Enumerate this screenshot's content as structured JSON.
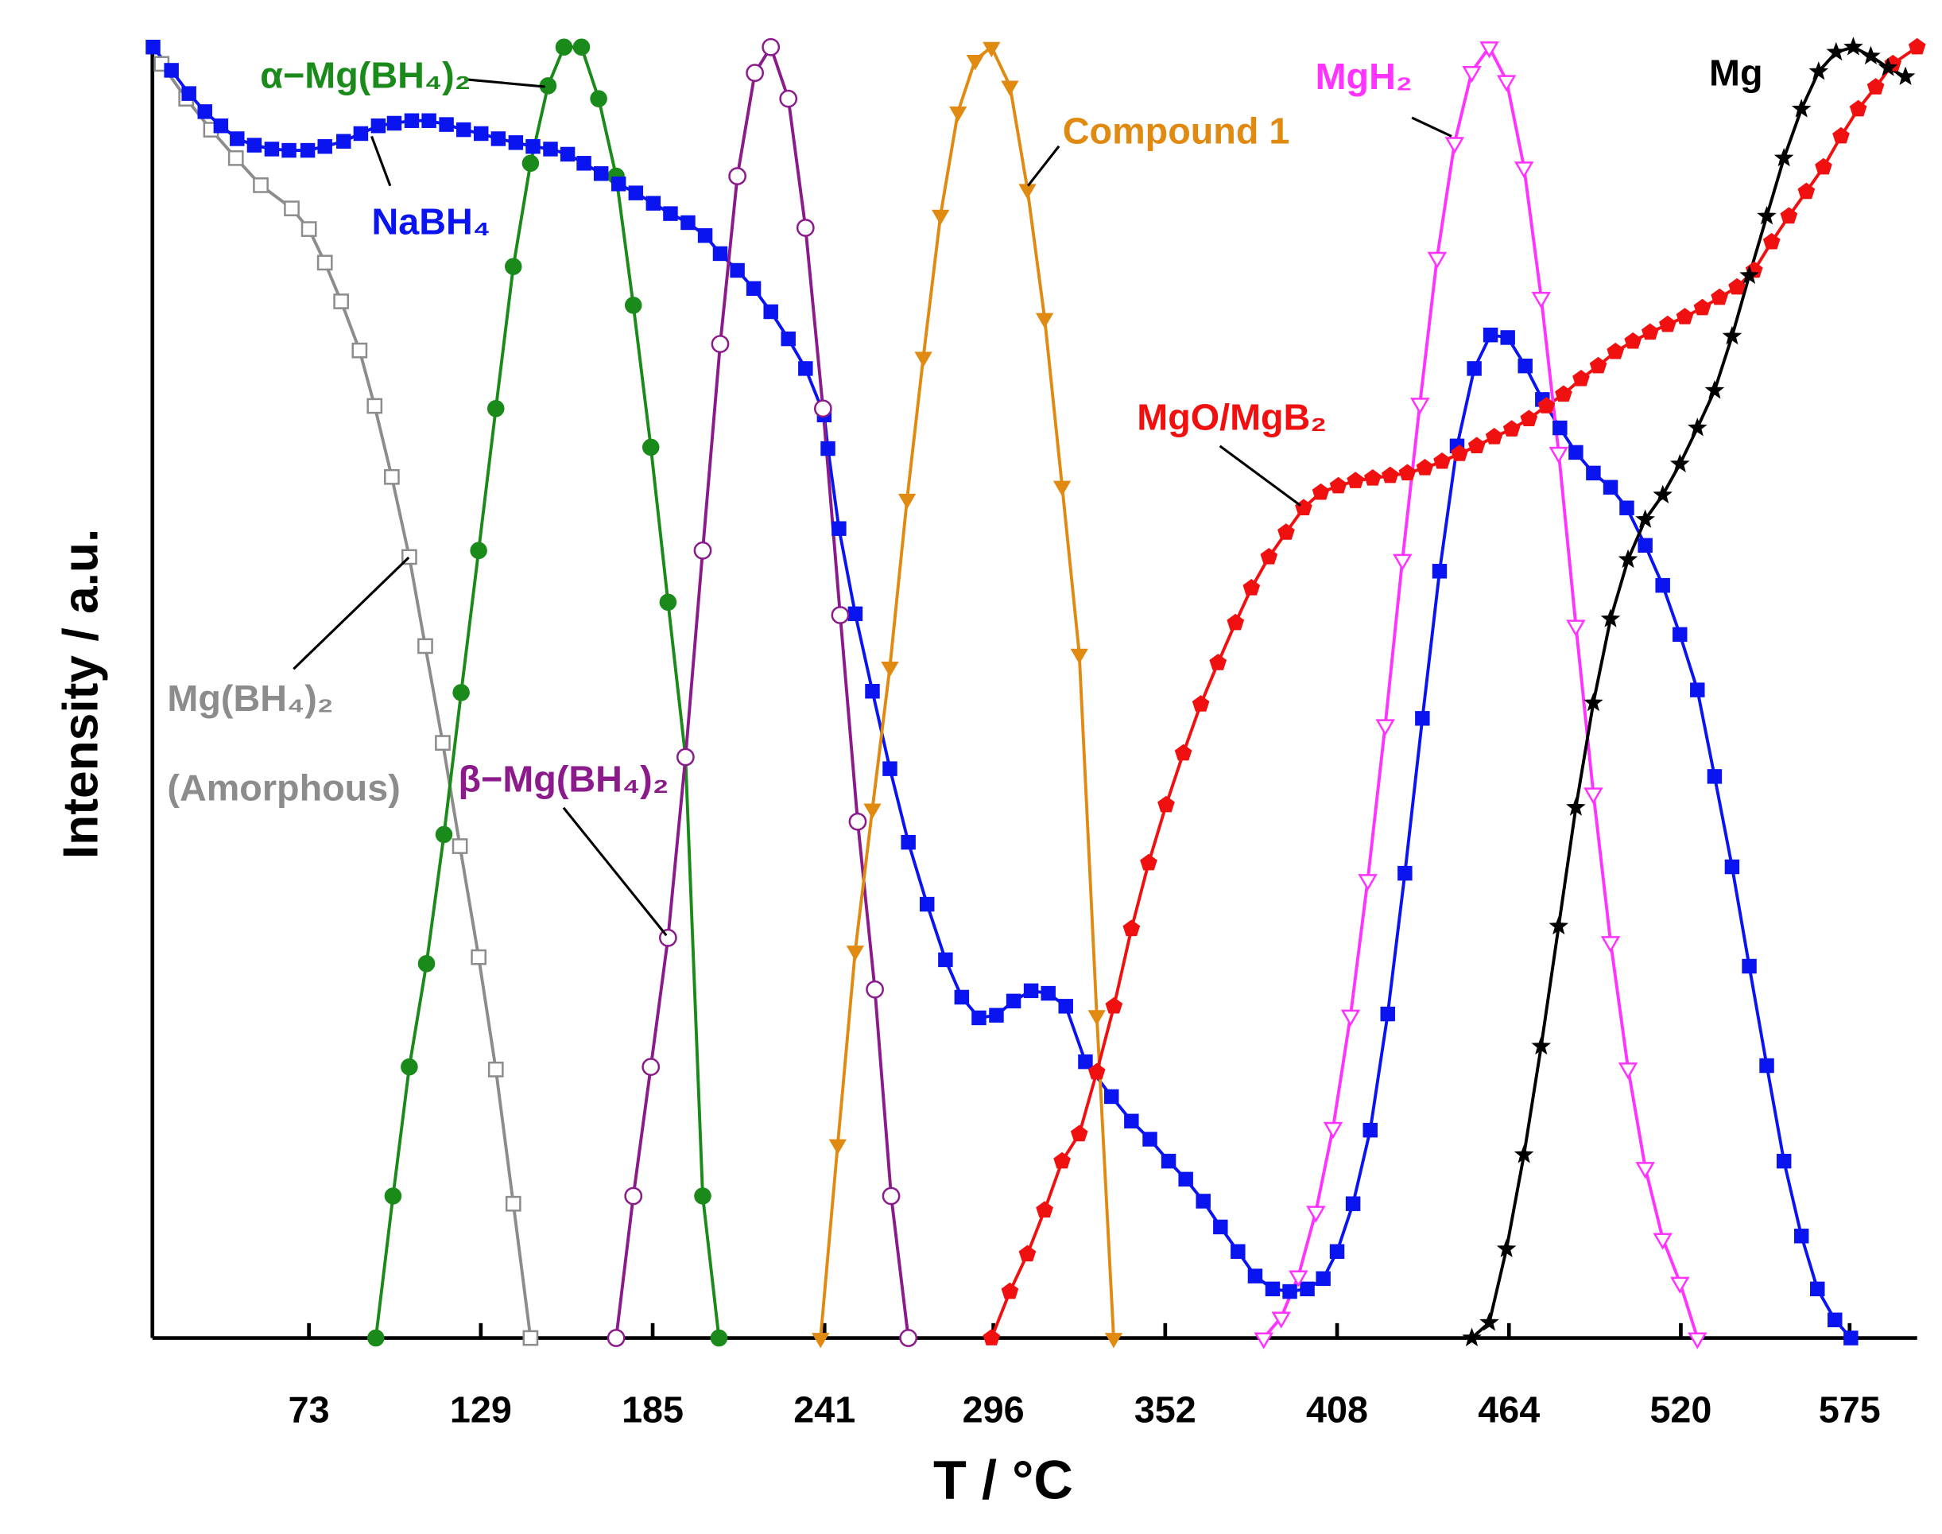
{
  "chart_data": {
    "type": "line",
    "x_label": "T / °C",
    "y_label": "Intensity / a.u.",
    "xlim": [
      22,
      597
    ],
    "ylim": [
      0,
      1
    ],
    "xticks": [
      73,
      129,
      185,
      241,
      296,
      352,
      408,
      464,
      520,
      575
    ],
    "series": [
      {
        "name": "Mg(BH₄)₂ (Amorphous)",
        "color": "#8c8c8c",
        "marker": "square-open",
        "x": [
          25.0,
          33.0,
          41.1,
          49.2,
          57.3,
          67.4,
          73,
          78.2,
          83.5,
          89.5,
          94.4,
          100.0,
          105.7,
          110.9,
          116.6,
          122.2,
          128.3,
          133.9,
          139.6,
          145.2
        ],
        "values": [
          0.987,
          0.96,
          0.936,
          0.914,
          0.893,
          0.875,
          0.859,
          0.833,
          0.803,
          0.765,
          0.722,
          0.667,
          0.605,
          0.536,
          0.461,
          0.381,
          0.295,
          0.208,
          0.104,
          0
        ]
      },
      {
        "name": "α−Mg(BH₄)₂",
        "color": "#1a8a1a",
        "marker": "circle",
        "x": [
          94.8,
          100.4,
          105.7,
          111.3,
          117.0,
          122.6,
          128.3,
          133.9,
          139.6,
          145.2,
          150.9,
          156.1,
          161.8,
          167.4,
          173.1,
          178.7,
          184.4,
          190.0,
          195.7,
          201.3,
          206.6
        ],
        "values": [
          0,
          0.11,
          0.21,
          0.29,
          0.39,
          0.5,
          0.61,
          0.72,
          0.83,
          0.91,
          0.97,
          1.0,
          1.0,
          0.96,
          0.9,
          0.8,
          0.69,
          0.57,
          0.45,
          0.11,
          0
        ]
      },
      {
        "name": "NaBH₄",
        "color": "#0a14f0",
        "marker": "square",
        "x": [
          22.2,
          28.2,
          33.9,
          39.1,
          44.3,
          49.6,
          55.2,
          60.9,
          66.5,
          72.6,
          78.2,
          84.3,
          89.9,
          95.6,
          100.8,
          106.5,
          112.1,
          117.8,
          123.4,
          129.1,
          134.7,
          140.4,
          146.0,
          151.7,
          157.3,
          162.6,
          168.2,
          173.9,
          179.5,
          185.2,
          190.8,
          196.5,
          202.1,
          207.0,
          212.6,
          217.9,
          223.5,
          229.2,
          234.8,
          240.9,
          242.1,
          245.7,
          251.0,
          256.6,
          262.3,
          268.3,
          274.4,
          280.4,
          285.7,
          291.3,
          297.0,
          302.6,
          308.3,
          313.9,
          319.6,
          326.0,
          334.5,
          341.0,
          347.0,
          353.1,
          358.7,
          364.4,
          370.0,
          375.7,
          381.3,
          387.0,
          392.6,
          398.3,
          403.5,
          408.0,
          413.2,
          418.8,
          424.5,
          430.1,
          435.8,
          441.4,
          447.1,
          452.7,
          458.0,
          463.6,
          469.3,
          474.9,
          480.6,
          485.8,
          491.5,
          497.1,
          502.4,
          508.4,
          514.1,
          519.7,
          525.4,
          531.0,
          536.7,
          542.3,
          548.0,
          553.6,
          559.3,
          564.5,
          570.2,
          575.4
        ],
        "values": [
          1.0,
          0.982,
          0.964,
          0.95,
          0.939,
          0.929,
          0.924,
          0.921,
          0.92,
          0.92,
          0.923,
          0.927,
          0.933,
          0.939,
          0.941,
          0.943,
          0.943,
          0.94,
          0.936,
          0.933,
          0.929,
          0.926,
          0.923,
          0.921,
          0.917,
          0.91,
          0.902,
          0.894,
          0.887,
          0.879,
          0.871,
          0.864,
          0.854,
          0.84,
          0.827,
          0.813,
          0.795,
          0.774,
          0.751,
          0.715,
          0.689,
          0.627,
          0.561,
          0.501,
          0.441,
          0.384,
          0.336,
          0.293,
          0.264,
          0.248,
          0.25,
          0.261,
          0.269,
          0.267,
          0.257,
          0.214,
          0.187,
          0.168,
          0.154,
          0.137,
          0.123,
          0.106,
          0.086,
          0.067,
          0.048,
          0.038,
          0.036,
          0.038,
          0.046,
          0.067,
          0.104,
          0.161,
          0.251,
          0.36,
          0.48,
          0.594,
          0.691,
          0.751,
          0.777,
          0.775,
          0.753,
          0.727,
          0.705,
          0.686,
          0.67,
          0.659,
          0.643,
          0.614,
          0.583,
          0.545,
          0.502,
          0.435,
          0.365,
          0.288,
          0.211,
          0.137,
          0.079,
          0.038,
          0.014,
          0
        ]
      },
      {
        "name": "β−Mg(BH₄)₂",
        "color": "#8b1a8b",
        "marker": "circle-open",
        "x": [
          173.1,
          178.7,
          184.4,
          190.0,
          195.7,
          201.3,
          207.0,
          212.6,
          218.3,
          223.5,
          229.2,
          234.8,
          240.5,
          246.1,
          251.8,
          257.4,
          262.7,
          268.3
        ],
        "values": [
          0,
          0.11,
          0.21,
          0.31,
          0.45,
          0.61,
          0.77,
          0.9,
          0.98,
          1.0,
          0.96,
          0.86,
          0.72,
          0.56,
          0.4,
          0.27,
          0.11,
          0
        ]
      },
      {
        "name": "Compound 1",
        "color": "#e08a12",
        "marker": "triangle-down",
        "x": [
          239.7,
          245.3,
          251.0,
          256.6,
          262.3,
          267.9,
          273.2,
          278.8,
          284.5,
          290.1,
          295.4,
          301.4,
          307.1,
          312.7,
          318.4,
          324.0,
          329.7,
          335.2
        ],
        "values": [
          0,
          0.15,
          0.3,
          0.41,
          0.52,
          0.65,
          0.76,
          0.87,
          0.95,
          0.99,
          1.0,
          0.97,
          0.89,
          0.79,
          0.66,
          0.53,
          0.25,
          0
        ]
      },
      {
        "name": "MgO/MgB₂",
        "color": "#f01010",
        "marker": "pentagon",
        "x": [
          295.4,
          301.4,
          307.1,
          312.7,
          318.4,
          324.0,
          329.7,
          335.3,
          341.0,
          346.6,
          352.3,
          357.9,
          363.6,
          369.2,
          374.9,
          380.1,
          385.8,
          391.4,
          397.1,
          402.7,
          408.4,
          414.0,
          419.6,
          425.3,
          430.9,
          436.6,
          442.2,
          447.9,
          453.5,
          459.2,
          464.9,
          470.5,
          476.2,
          481.8,
          487.5,
          493.1,
          498.7,
          504.4,
          510.0,
          515.7,
          521.3,
          527.0,
          532.6,
          538.3,
          543.9,
          549.6,
          555.2,
          560.9,
          566.5,
          572.2,
          577.8,
          583.5,
          589.1,
          597
        ],
        "values": [
          0,
          0.036,
          0.065,
          0.099,
          0.137,
          0.158,
          0.206,
          0.257,
          0.317,
          0.368,
          0.413,
          0.453,
          0.491,
          0.523,
          0.554,
          0.581,
          0.605,
          0.624,
          0.643,
          0.655,
          0.66,
          0.664,
          0.666,
          0.668,
          0.67,
          0.674,
          0.679,
          0.685,
          0.691,
          0.698,
          0.704,
          0.712,
          0.722,
          0.731,
          0.743,
          0.753,
          0.764,
          0.772,
          0.779,
          0.785,
          0.791,
          0.798,
          0.806,
          0.814,
          0.827,
          0.849,
          0.869,
          0.888,
          0.907,
          0.931,
          0.952,
          0.969,
          0.987,
          1.0
        ]
      },
      {
        "name": "MgH₂",
        "color": "#ff33ff",
        "marker": "triangle-down-open",
        "x": [
          384.1,
          389.8,
          395.4,
          401.1,
          406.7,
          412.4,
          418.0,
          423.7,
          429.3,
          435.0,
          440.6,
          446.3,
          451.9,
          457.6,
          463.2,
          468.9,
          474.5,
          480.2,
          485.8,
          491.5,
          497.1,
          502.8,
          508.4,
          514.1,
          519.7,
          525.4
        ],
        "values": [
          0,
          0.016,
          0.048,
          0.098,
          0.163,
          0.25,
          0.355,
          0.475,
          0.603,
          0.724,
          0.837,
          0.926,
          0.981,
          1.0,
          0.974,
          0.907,
          0.806,
          0.686,
          0.552,
          0.422,
          0.307,
          0.209,
          0.132,
          0.077,
          0.043,
          0
        ]
      },
      {
        "name": "Mg",
        "color": "#000000",
        "marker": "star",
        "x": [
          451.9,
          457.6,
          463.2,
          468.9,
          474.5,
          480.2,
          485.8,
          491.5,
          497.1,
          502.8,
          508.4,
          514.1,
          519.7,
          525.4,
          531.0,
          536.7,
          542.3,
          548.0,
          553.6,
          559.3,
          564.9,
          570.6,
          576.2,
          581.9,
          587.5,
          593.2
        ],
        "values": [
          0,
          0.012,
          0.069,
          0.142,
          0.226,
          0.319,
          0.411,
          0.492,
          0.557,
          0.603,
          0.634,
          0.653,
          0.677,
          0.705,
          0.734,
          0.776,
          0.823,
          0.869,
          0.914,
          0.952,
          0.981,
          0.996,
          1.0,
          0.993,
          0.984,
          0.977
        ]
      }
    ]
  }
}
